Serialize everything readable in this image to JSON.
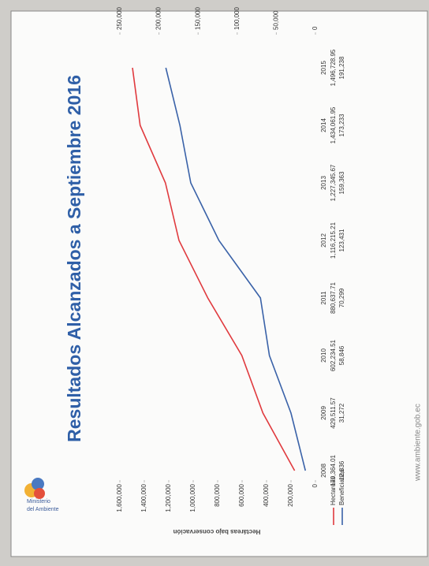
{
  "chart_data": {
    "type": "line",
    "title": "Resultados Alcanzados a Septiembre 2016",
    "logo_text": [
      "Ministerio",
      "del Ambiente"
    ],
    "footer": "www.ambiente.gob.ec",
    "ylabel": "Hectáreas bajo conservación",
    "categories": [
      "2008",
      "2009",
      "2010",
      "2011",
      "2012",
      "2013",
      "2014",
      "2015"
    ],
    "series": [
      {
        "name": "Hectareas",
        "color": "#e03a3e",
        "values": [
          170364.01,
          429511.57,
          602234.51,
          880637.71,
          1116215.21,
          1227345.67,
          1434061.95,
          1496728.95
        ],
        "value_labels": [
          "170,364.01",
          "429,511.57",
          "602,234.51",
          "880,637.71",
          "1,116,215.21",
          "1,227,345.67",
          "1,434,061.95",
          "1,496,728.95"
        ]
      },
      {
        "name": "Beneficiarios",
        "color": "#3a62a8",
        "axis": "y2",
        "values": [
          12836,
          31272,
          58846,
          70299,
          123431,
          159363,
          173233,
          191238
        ],
        "value_labels": [
          "12,836",
          "31,272",
          "58,846",
          "70,299",
          "123,431",
          "159,363",
          "173,233",
          "191,238"
        ]
      }
    ],
    "ylim": [
      0,
      1600000
    ],
    "yticks": [
      0,
      {
        "value": 200000,
        "label": "200,000"
      },
      {
        "value": 400000,
        "label": "400,000"
      },
      {
        "value": 600000,
        "label": "600,000"
      },
      {
        "value": 800000,
        "label": "800,000"
      },
      {
        "value": 1000000,
        "label": "1,000,000"
      },
      {
        "value": 1200000,
        "label": "1,200,000"
      },
      {
        "value": 1400000,
        "label": "1,400,000"
      },
      {
        "value": 1600000,
        "label": "1,600,000"
      }
    ],
    "y2lim": [
      0,
      250000
    ],
    "y2ticks": [
      0,
      {
        "value": 50000,
        "label": "50,000"
      },
      {
        "value": 100000,
        "label": "100,000"
      },
      {
        "value": 150000,
        "label": "150,000"
      },
      {
        "value": 200000,
        "label": "200,000"
      },
      {
        "value": 250000,
        "label": "250,000"
      }
    ]
  }
}
